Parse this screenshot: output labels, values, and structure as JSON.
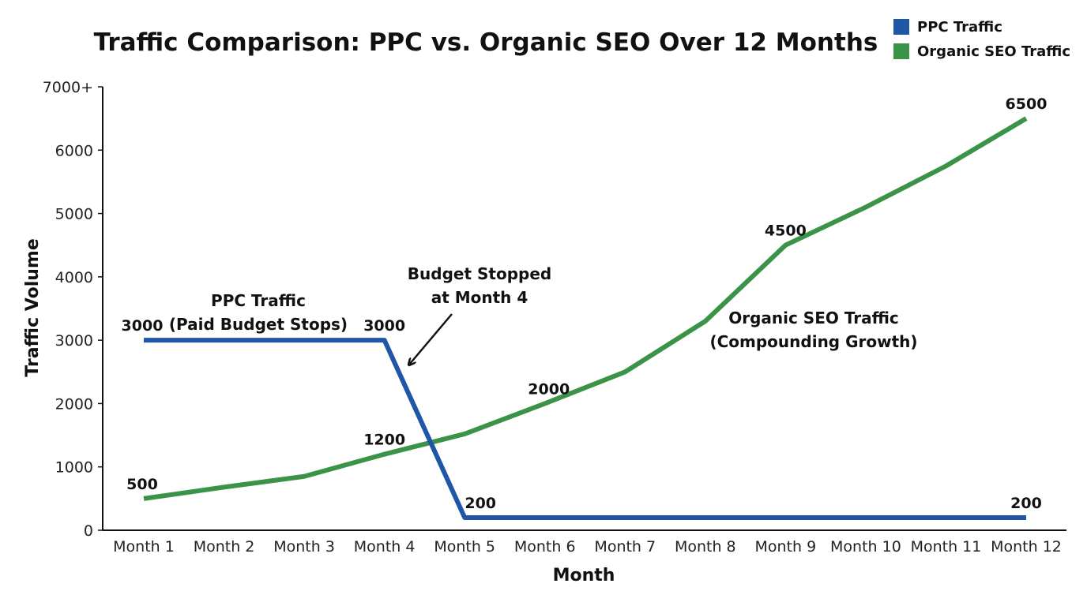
{
  "chart_data": {
    "type": "line",
    "title": "Traffic Comparison: PPC vs. Organic SEO Over 12 Months",
    "xlabel": "Month",
    "ylabel": "Traffic Volume",
    "categories": [
      "Month 1",
      "Month 2",
      "Month 3",
      "Month 4",
      "Month 5",
      "Month 6",
      "Month 7",
      "Month 8",
      "Month 9",
      "Month 10",
      "Month 11",
      "Month 12"
    ],
    "ylim": [
      0,
      7000
    ],
    "yticks": [
      "0",
      "1000",
      "2000",
      "3000",
      "4000",
      "5000",
      "6000",
      "7000+"
    ],
    "grid": false,
    "legend": "top-right",
    "series": [
      {
        "name": "PPC Traffic",
        "color": "#1f56a6",
        "values": [
          3000,
          3000,
          3000,
          3000,
          200,
          200,
          200,
          200,
          200,
          200,
          200,
          200
        ],
        "point_labels": [
          {
            "index": 0,
            "text": "3000"
          },
          {
            "index": 3,
            "text": "3000"
          },
          {
            "index": 4,
            "text": "200"
          },
          {
            "index": 11,
            "text": "200"
          }
        ]
      },
      {
        "name": "Organic SEO Traffic",
        "color": "#3b9348",
        "values": [
          500,
          680,
          850,
          1200,
          1520,
          2000,
          2500,
          3300,
          4500,
          5100,
          5750,
          6500
        ],
        "point_labels": [
          {
            "index": 0,
            "text": "500"
          },
          {
            "index": 3,
            "text": "1200"
          },
          {
            "index": 5,
            "text": "2000"
          },
          {
            "index": 8,
            "text": "4500"
          },
          {
            "index": 11,
            "text": "6500"
          }
        ]
      }
    ],
    "annotations": [
      {
        "lines": [
          "PPC Traffic",
          "(Paid Budget Stops)"
        ]
      },
      {
        "lines": [
          "Budget Stopped",
          "at Month 4"
        ]
      },
      {
        "lines": [
          "Organic SEO Traffic",
          "(Compounding Growth)"
        ]
      }
    ]
  }
}
